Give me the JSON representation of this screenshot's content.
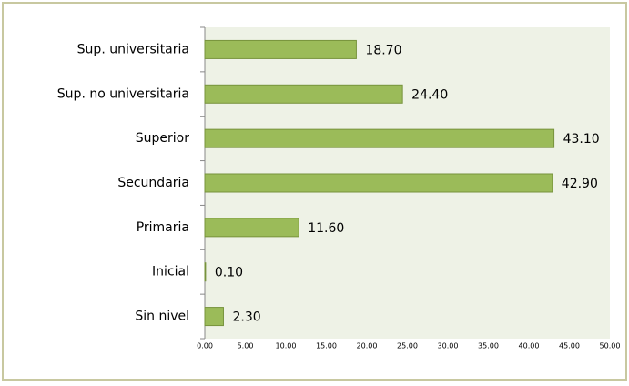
{
  "chart_data": {
    "type": "hbar",
    "categories": [
      "Sup. universitaria",
      "Sup. no universitaria",
      "Superior",
      "Secundaria",
      "Primaria",
      "Inicial",
      "Sin nivel"
    ],
    "values": [
      18.7,
      24.4,
      43.1,
      42.9,
      11.6,
      0.1,
      2.3
    ],
    "value_labels": [
      "18.70",
      "24.40",
      "43.10",
      "42.90",
      "11.60",
      "0.10",
      "2.30"
    ],
    "color": "#9bbb59",
    "xlim": [
      0,
      50
    ],
    "xticks": [
      {
        "value": 0,
        "label": "0.00"
      },
      {
        "value": 5,
        "label": "5.00"
      },
      {
        "value": 10,
        "label": "10.00"
      },
      {
        "value": 15,
        "label": "15.00"
      },
      {
        "value": 20,
        "label": "20.00"
      },
      {
        "value": 25,
        "label": "25.00"
      },
      {
        "value": 30,
        "label": "30.00"
      },
      {
        "value": 35,
        "label": "35.00"
      },
      {
        "value": 40,
        "label": "40.00"
      },
      {
        "value": 45,
        "label": "45.00"
      },
      {
        "value": 50,
        "label": "50.00"
      }
    ]
  }
}
